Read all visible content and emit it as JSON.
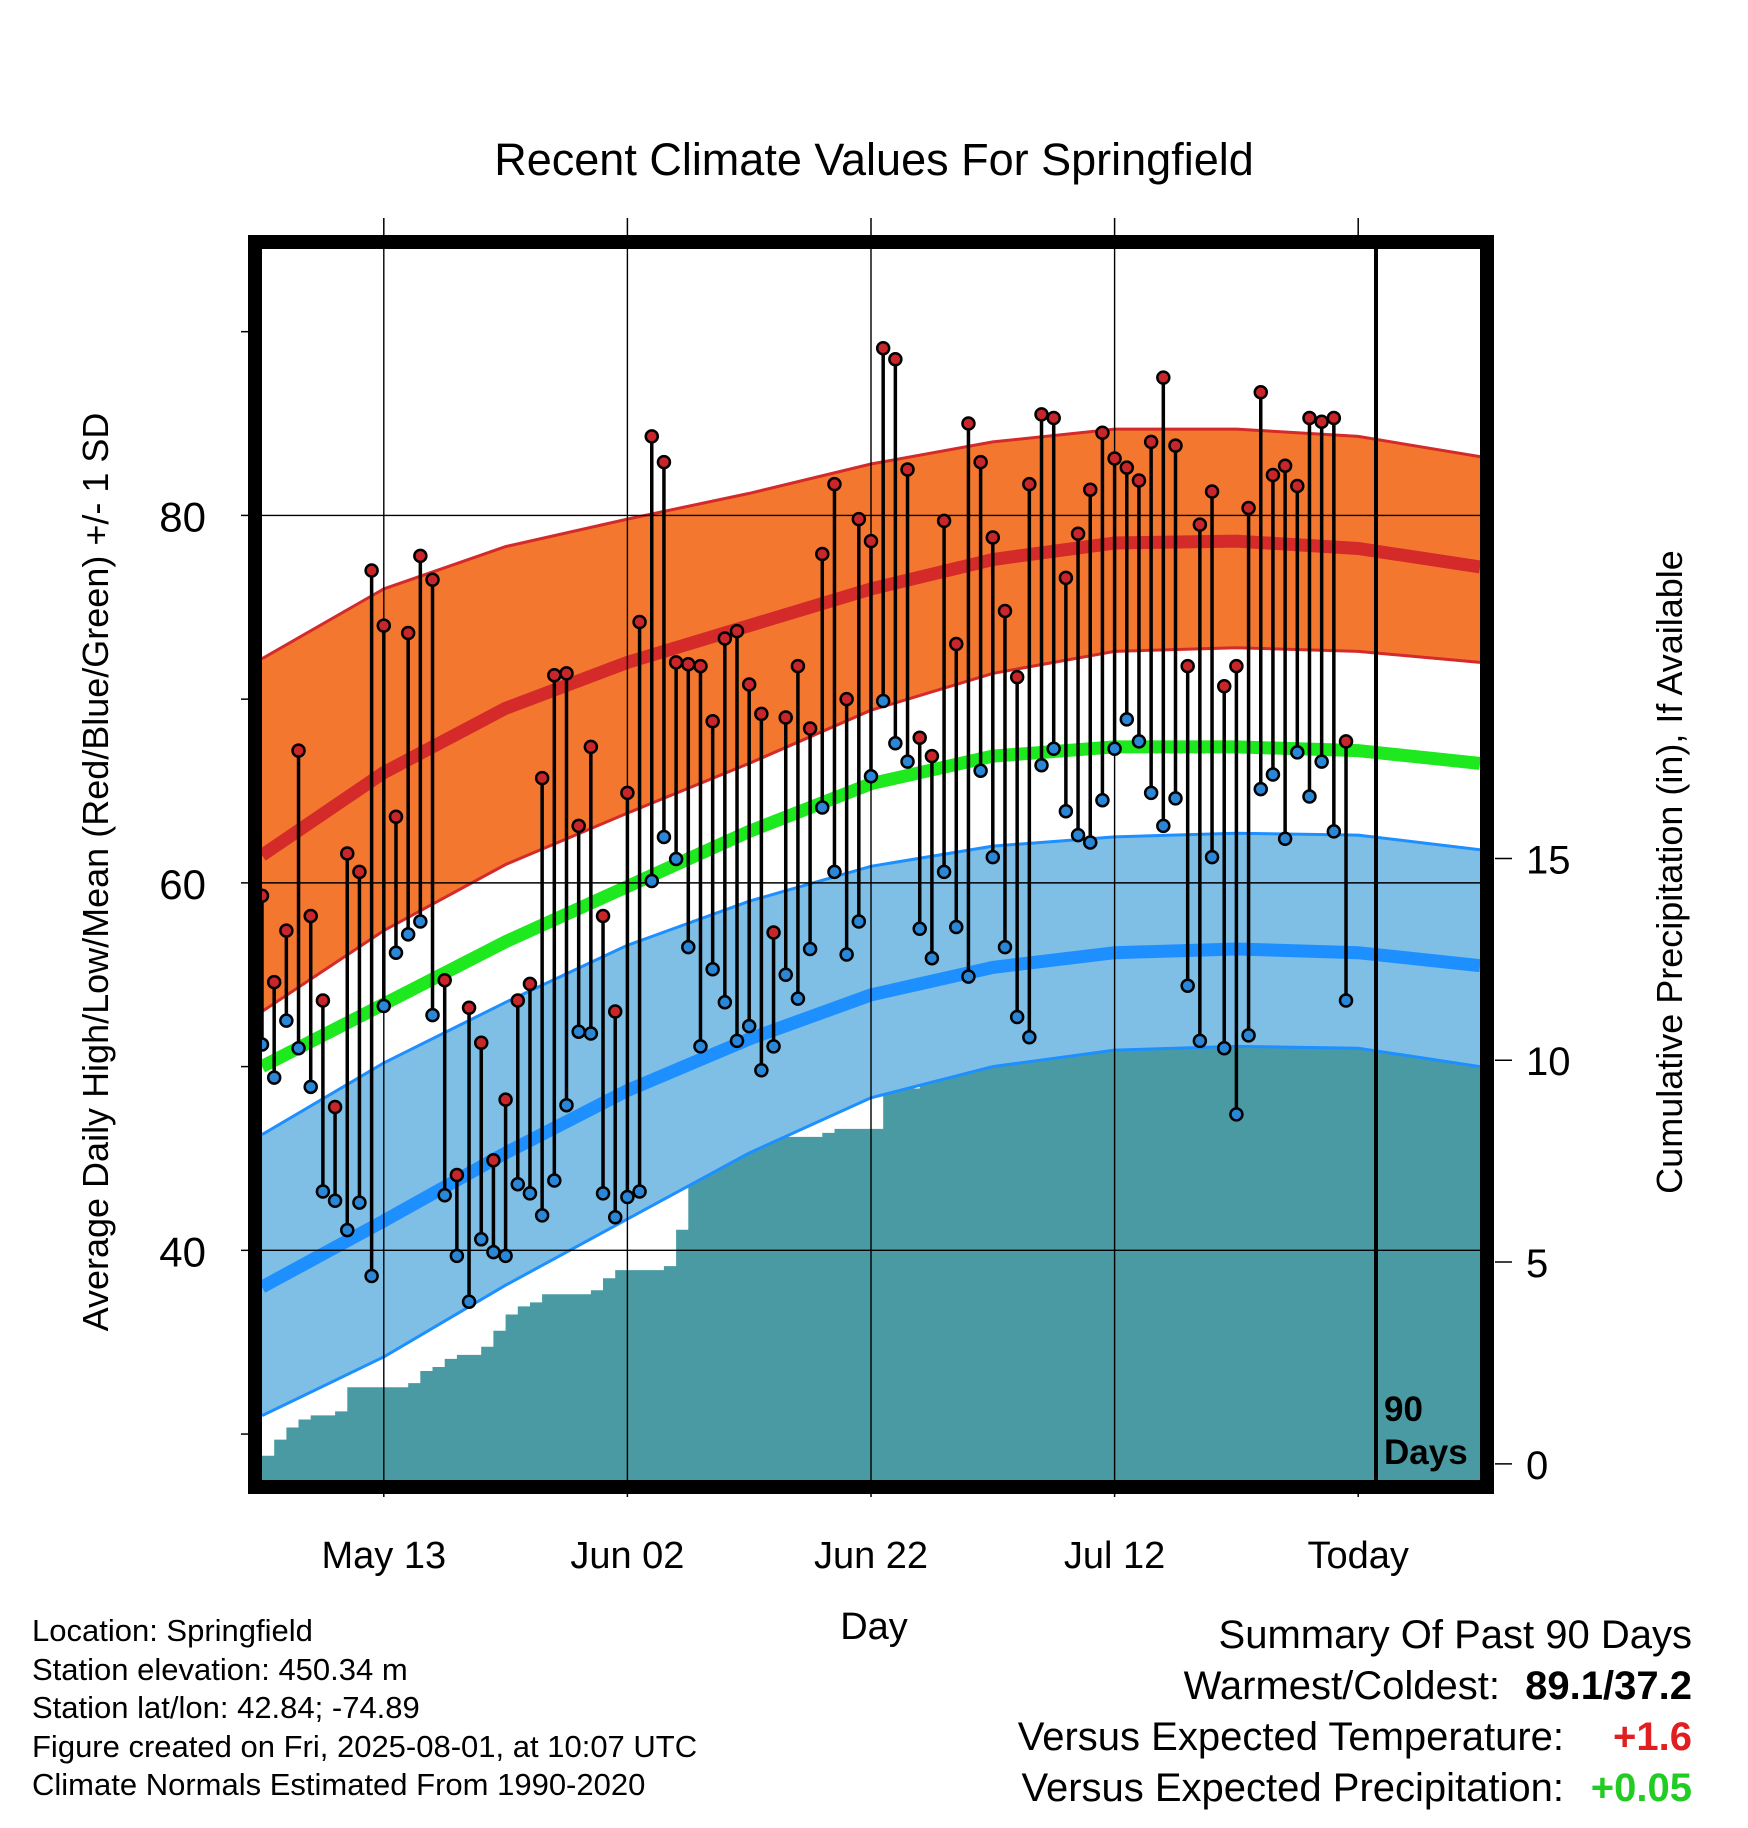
{
  "chart_data": {
    "type": "line",
    "title": "Recent Climate Values For Springfield",
    "xlabel": "Day",
    "ylabel": "Average Daily High/Low/Mean (Red/Blue/Green) +/- 1 SD",
    "y2label": "Cumulative Precipitation (in), If Available",
    "x_ticks": [
      "May 13",
      "Jun 02",
      "Jun 22",
      "Jul 12",
      "Today"
    ],
    "x_tick_days": [
      10,
      30,
      50,
      70,
      90
    ],
    "x_range": [
      0,
      100
    ],
    "y_ticks": [
      "80",
      "60",
      "40"
    ],
    "y_tick_values": [
      80,
      60,
      40
    ],
    "ylim": [
      27.5,
      94.5
    ],
    "y2_ticks": [
      "15",
      "10",
      "5",
      "0"
    ],
    "y2_tick_values": [
      15,
      10,
      5,
      0
    ],
    "y2lim": [
      -0.4,
      30.1
    ],
    "today_label": [
      "90",
      "Days"
    ],
    "colors": {
      "high_band": "#f4772f",
      "high_line": "#d42a2a",
      "low_band": "#7fbfe6",
      "low_line": "#1e8fff",
      "mean_line": "#1ee81e",
      "precip": "#4a9aa3",
      "high_marker": "#c8262a",
      "low_marker": "#2a86d6"
    },
    "normals": {
      "days": [
        0,
        10,
        20,
        30,
        40,
        50,
        60,
        70,
        80,
        90,
        100
      ],
      "high_mean": [
        61.5,
        66.0,
        69.5,
        72.0,
        74.0,
        76.0,
        77.6,
        78.5,
        78.6,
        78.2,
        77.2
      ],
      "high_sd_upper": [
        72.2,
        76.0,
        78.3,
        79.8,
        81.2,
        82.8,
        84.0,
        84.7,
        84.7,
        84.3,
        83.2
      ],
      "high_sd_lower": [
        53.0,
        57.4,
        61.0,
        63.8,
        66.5,
        69.4,
        71.4,
        72.6,
        72.8,
        72.6,
        72.0
      ],
      "mean": [
        50.0,
        53.4,
        56.8,
        59.8,
        62.8,
        65.4,
        66.9,
        67.4,
        67.4,
        67.2,
        66.5
      ],
      "low_mean": [
        38.0,
        41.6,
        45.3,
        48.7,
        51.5,
        53.9,
        55.4,
        56.2,
        56.4,
        56.2,
        55.5
      ],
      "low_sd_upper": [
        46.3,
        50.2,
        53.5,
        56.6,
        59.0,
        60.9,
        62.0,
        62.5,
        62.7,
        62.6,
        61.8
      ],
      "low_sd_lower": [
        31.0,
        34.2,
        38.1,
        41.7,
        45.3,
        48.3,
        50.0,
        50.9,
        51.1,
        51.0,
        50.0
      ]
    },
    "daily": {
      "days": [
        0,
        1,
        2,
        3,
        4,
        5,
        6,
        7,
        8,
        9,
        10,
        11,
        12,
        13,
        14,
        15,
        16,
        17,
        18,
        19,
        20,
        21,
        22,
        23,
        24,
        25,
        26,
        27,
        28,
        29,
        30,
        31,
        32,
        33,
        34,
        35,
        36,
        37,
        38,
        39,
        40,
        41,
        42,
        43,
        44,
        45,
        46,
        47,
        48,
        49,
        50,
        51,
        52,
        53,
        54,
        55,
        56,
        57,
        58,
        59,
        60,
        61,
        62,
        63,
        64,
        65,
        66,
        67,
        68,
        69,
        70,
        71,
        72,
        73,
        74,
        75,
        76,
        77,
        78,
        79,
        80,
        81,
        82,
        83,
        84,
        85,
        86,
        87,
        88,
        89
      ],
      "high": [
        59.3,
        54.6,
        57.4,
        67.2,
        58.2,
        53.6,
        47.8,
        61.6,
        60.6,
        77.0,
        74.0,
        63.6,
        73.6,
        77.8,
        76.5,
        54.7,
        44.1,
        53.2,
        51.3,
        44.9,
        48.2,
        53.6,
        54.5,
        65.7,
        71.3,
        71.4,
        63.1,
        67.4,
        58.2,
        53.0,
        64.9,
        74.2,
        84.3,
        82.9,
        72.0,
        71.9,
        71.8,
        68.8,
        73.3,
        73.7,
        70.8,
        69.2,
        57.3,
        69.0,
        71.8,
        68.4,
        77.9,
        81.7,
        70.0,
        79.8,
        78.6,
        89.1,
        88.5,
        82.5,
        67.9,
        66.9,
        79.7,
        73.0,
        85.0,
        82.9,
        78.8,
        74.8,
        71.2,
        81.7,
        85.5,
        85.3,
        76.6,
        79.0,
        81.4,
        84.5,
        83.1,
        82.6,
        81.9,
        84.0,
        87.5,
        83.8,
        71.8,
        79.5,
        81.3,
        70.7,
        71.8,
        80.4,
        86.7,
        82.2,
        82.7,
        81.6,
        85.3,
        85.1,
        85.3,
        67.7
      ],
      "low": [
        51.2,
        49.4,
        52.5,
        51.0,
        48.9,
        43.2,
        42.7,
        41.1,
        42.6,
        38.6,
        53.3,
        56.2,
        57.2,
        57.9,
        52.8,
        43.0,
        39.7,
        37.2,
        40.6,
        39.9,
        39.7,
        43.6,
        43.1,
        41.9,
        43.8,
        47.9,
        51.9,
        51.8,
        43.1,
        41.8,
        42.9,
        43.2,
        60.1,
        62.5,
        61.3,
        56.5,
        51.1,
        55.3,
        53.5,
        51.4,
        52.2,
        49.8,
        51.1,
        55.0,
        53.7,
        56.4,
        64.1,
        60.6,
        56.1,
        57.9,
        65.8,
        69.9,
        67.6,
        66.6,
        57.5,
        55.9,
        60.6,
        57.6,
        54.9,
        66.1,
        61.4,
        56.5,
        52.7,
        51.6,
        66.4,
        67.3,
        63.9,
        62.6,
        62.2,
        64.5,
        67.3,
        68.9,
        67.7,
        64.9,
        63.1,
        64.6,
        54.4,
        51.4,
        61.4,
        51.0,
        47.4,
        51.7,
        65.1,
        65.9,
        62.4,
        67.1,
        64.7,
        66.6,
        62.8,
        53.6
      ]
    },
    "precipitation": {
      "days": [
        0,
        1,
        2,
        3,
        4,
        5,
        6,
        7,
        8,
        9,
        10,
        11,
        12,
        13,
        14,
        15,
        16,
        17,
        18,
        19,
        20,
        21,
        22,
        23,
        24,
        25,
        26,
        27,
        28,
        29,
        30,
        31,
        32,
        33,
        34,
        35,
        36,
        37,
        38,
        39,
        40,
        41,
        42,
        43,
        44,
        45,
        46,
        47,
        48,
        49,
        50,
        51,
        52,
        53,
        54,
        55,
        56,
        57,
        58,
        59,
        60,
        61,
        62,
        63,
        64,
        65,
        66,
        67,
        68,
        69,
        70,
        71,
        72,
        73,
        74,
        75,
        76,
        77,
        78,
        79,
        80,
        81,
        82,
        83,
        84,
        85,
        86,
        87,
        88,
        89,
        90,
        91,
        92,
        93,
        94,
        95,
        96,
        97,
        98,
        99,
        100
      ],
      "cumulative": [
        0.2,
        0.6,
        0.9,
        1.1,
        1.2,
        1.2,
        1.3,
        1.9,
        1.9,
        1.9,
        1.9,
        1.9,
        2.0,
        2.3,
        2.4,
        2.6,
        2.7,
        2.7,
        2.9,
        3.3,
        3.7,
        3.9,
        4.0,
        4.2,
        4.2,
        4.2,
        4.2,
        4.3,
        4.6,
        4.8,
        4.8,
        4.8,
        4.8,
        4.9,
        5.8,
        7.6,
        7.7,
        7.9,
        8.0,
        8.0,
        8.0,
        8.0,
        8.1,
        8.1,
        8.1,
        8.1,
        8.2,
        8.3,
        8.3,
        8.3,
        8.3,
        9.2,
        9.3,
        9.3,
        9.5,
        9.9,
        10.0,
        10.0,
        10.0,
        10.0,
        10.1,
        10.1,
        10.2,
        10.2,
        10.2,
        10.2,
        10.3,
        10.3,
        10.3,
        10.3,
        10.3,
        10.4,
        10.4,
        10.5,
        10.6,
        10.6,
        10.6,
        10.6,
        10.7,
        10.7,
        10.7,
        10.7,
        10.7,
        10.7,
        10.7,
        10.7,
        11.2,
        11.7,
        11.7,
        11.8,
        12.5,
        13.0,
        13.0,
        13.0,
        13.0,
        13.0,
        13.0,
        13.0,
        13.0,
        13.0,
        13.0
      ]
    },
    "grid": true,
    "legend": "none"
  },
  "meta": {
    "location": "Location: Springfield",
    "elevation": "Station elevation: 450.34 m",
    "latlon": "Station lat/lon: 42.84; -74.89",
    "created": "Figure created on Fri, 2025-08-01, at 10:07 UTC",
    "normals": "Climate Normals Estimated From 1990-2020"
  },
  "summary": {
    "heading": "Summary Of Past 90 Days",
    "warmest_coldest_label": "Warmest/Coldest:",
    "warmest_coldest_value": "89.1/37.2",
    "temp_label": "Versus Expected Temperature:",
    "temp_value": "+1.6",
    "temp_color": "#e02020",
    "precip_label": "Versus Expected Precipitation:",
    "precip_value": "+0.05",
    "precip_color": "#22cc22"
  }
}
